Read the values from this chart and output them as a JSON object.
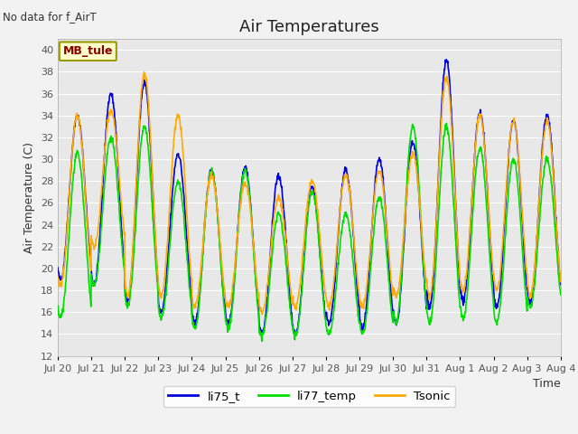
{
  "title": "Air Temperatures",
  "ylabel": "Air Temperature (C)",
  "xlabel": "Time",
  "no_data_text": "No data for f_AirT",
  "legend_label_text": "MB_tule",
  "ylim": [
    12,
    41
  ],
  "yticks": [
    12,
    14,
    16,
    18,
    20,
    22,
    24,
    26,
    28,
    30,
    32,
    34,
    36,
    38,
    40
  ],
  "x_tick_labels": [
    "Jul 20",
    "Jul 21",
    "Jul 22",
    "Jul 23",
    "Jul 24",
    "Jul 25",
    "Jul 26",
    "Jul 27",
    "Jul 28",
    "Jul 29",
    "Jul 30",
    "Jul 31",
    "Aug 1",
    "Aug 2",
    "Aug 3",
    "Aug 4"
  ],
  "line_colors": {
    "li75_t": "#0000dd",
    "li77_temp": "#00dd00",
    "Tsonic": "#ffaa00"
  },
  "line_widths": {
    "li75_t": 1.2,
    "li77_temp": 1.2,
    "Tsonic": 1.2
  },
  "plot_bg_color": "#e8e8e8",
  "fig_bg_color": "#f2f2f2",
  "grid_color": "#ffffff",
  "title_fontsize": 13,
  "axis_fontsize": 8,
  "label_fontsize": 9,
  "tick_label_color": "#555555",
  "daily_highs_75": [
    34,
    36,
    37,
    30.5,
    29,
    29.3,
    28.5,
    27.5,
    29,
    30,
    31.5,
    39,
    34.3,
    33.5,
    34
  ],
  "daily_lows_75": [
    19,
    18.5,
    17,
    16,
    15,
    15,
    14,
    14,
    15,
    14.5,
    15,
    16.5,
    17,
    16.5,
    17
  ],
  "daily_highs_77": [
    30.5,
    32,
    33,
    28,
    29,
    29,
    25,
    27,
    25,
    26.5,
    33,
    33,
    31,
    30,
    30
  ],
  "daily_lows_77": [
    15.5,
    18.5,
    16.5,
    15.5,
    14.5,
    14.5,
    13.8,
    13.8,
    14,
    14,
    15,
    15,
    15.5,
    15,
    16.5
  ],
  "daily_highs_ts": [
    34,
    34.5,
    37.8,
    34,
    28.5,
    27.8,
    26.5,
    28,
    28.5,
    29,
    30.5,
    37.5,
    34,
    33.5,
    33.5
  ],
  "daily_lows_ts": [
    18.5,
    22,
    17.5,
    17.5,
    16.5,
    16.5,
    16,
    16.5,
    16.5,
    16.5,
    17.5,
    17.5,
    18,
    18,
    17.5
  ]
}
